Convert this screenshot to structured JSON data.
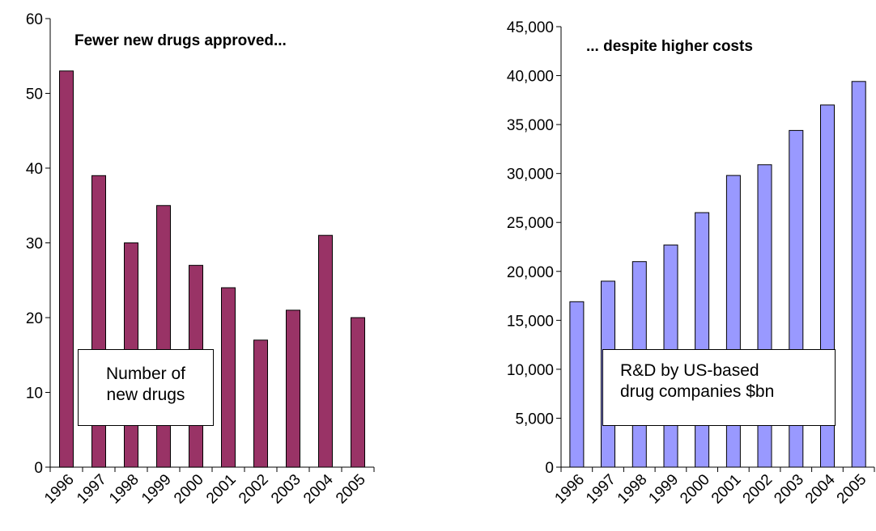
{
  "chart_data": [
    {
      "type": "bar",
      "title": "Fewer new drugs approved...",
      "xlabel": "",
      "ylabel": "",
      "categories": [
        "1996",
        "1997",
        "1998",
        "1999",
        "2000",
        "2001",
        "2002",
        "2003",
        "2004",
        "2005"
      ],
      "series": [
        {
          "name": "Number of\nnew drugs",
          "values": [
            53,
            39,
            30,
            35,
            27,
            24,
            17,
            21,
            31,
            20
          ],
          "color": "#993366"
        }
      ],
      "ylim": [
        0,
        60
      ],
      "yticks": [
        0,
        10,
        20,
        30,
        40,
        50,
        60
      ],
      "ytick_labels": [
        "0",
        "10",
        "20",
        "30",
        "40",
        "50",
        "60"
      ],
      "grid": false,
      "legend_placement": "bottom-left"
    },
    {
      "type": "bar",
      "title": "... despite higher costs",
      "xlabel": "",
      "ylabel": "",
      "categories": [
        "1996",
        "1997",
        "1998",
        "1999",
        "2000",
        "2001",
        "2002",
        "2003",
        "2004",
        "2005"
      ],
      "series": [
        {
          "name": "R&D by US-based\ndrug companies $bn",
          "values": [
            16900,
            19000,
            21000,
            22700,
            26000,
            29800,
            30900,
            34400,
            37000,
            39400
          ],
          "color": "#9999ff"
        }
      ],
      "ylim": [
        0,
        45000
      ],
      "yticks": [
        0,
        5000,
        10000,
        15000,
        20000,
        25000,
        30000,
        35000,
        40000,
        45000
      ],
      "ytick_labels": [
        "0",
        "5,000",
        "10,000",
        "15,000",
        "20,000",
        "25,000",
        "30,000",
        "35,000",
        "40,000",
        "45,000"
      ],
      "grid": false,
      "legend_placement": "bottom-center"
    }
  ]
}
